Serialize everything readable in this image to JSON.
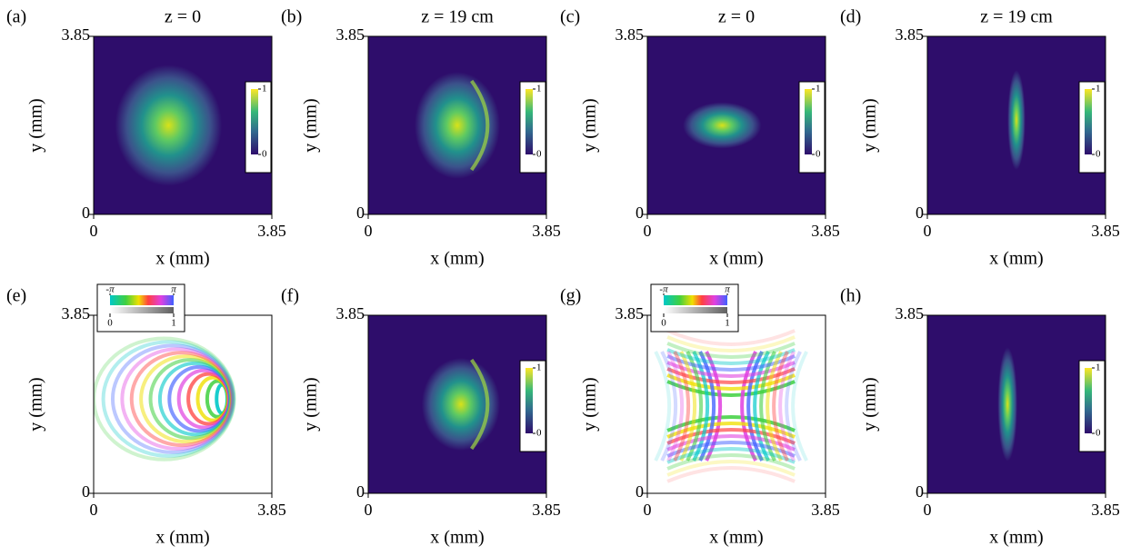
{
  "chart_data": [
    {
      "type": "heatmap",
      "label": "(a)",
      "title": "z = 0",
      "xlabel": "x (mm)",
      "ylabel": "y (mm)",
      "xlim": [
        0,
        3.85
      ],
      "ylim": [
        0,
        3.85
      ],
      "xticks": [
        0,
        3.85
      ],
      "yticks": [
        0,
        3.85
      ],
      "colorbar": {
        "type": "intensity",
        "clim": [
          0,
          1
        ],
        "ticks": [
          0,
          1
        ]
      }
    },
    {
      "type": "heatmap",
      "label": "(b)",
      "title": "z = 19 cm",
      "xlabel": "x (mm)",
      "ylabel": "y (mm)",
      "xlim": [
        0,
        3.85
      ],
      "ylim": [
        0,
        3.85
      ],
      "xticks": [
        0,
        3.85
      ],
      "yticks": [
        0,
        3.85
      ],
      "colorbar": {
        "type": "intensity",
        "clim": [
          0,
          1
        ],
        "ticks": [
          0,
          1
        ]
      }
    },
    {
      "type": "heatmap",
      "label": "(c)",
      "title": "z = 0",
      "xlabel": "x (mm)",
      "ylabel": "y (mm)",
      "xlim": [
        0,
        3.85
      ],
      "ylim": [
        0,
        3.85
      ],
      "xticks": [
        0,
        3.85
      ],
      "yticks": [
        0,
        3.85
      ],
      "colorbar": {
        "type": "intensity",
        "clim": [
          0,
          1
        ],
        "ticks": [
          0,
          1
        ]
      }
    },
    {
      "type": "heatmap",
      "label": "(d)",
      "title": "z = 19 cm",
      "xlabel": "x (mm)",
      "ylabel": "y (mm)",
      "xlim": [
        0,
        3.85
      ],
      "ylim": [
        0,
        3.85
      ],
      "xticks": [
        0,
        3.85
      ],
      "yticks": [
        0,
        3.85
      ],
      "colorbar": {
        "type": "intensity",
        "clim": [
          0,
          1
        ],
        "ticks": [
          0,
          1
        ]
      }
    },
    {
      "type": "heatmap",
      "label": "(e)",
      "xlabel": "x (mm)",
      "ylabel": "y (mm)",
      "xlim": [
        0,
        3.85
      ],
      "ylim": [
        0,
        3.85
      ],
      "xticks": [
        0,
        3.85
      ],
      "yticks": [
        0,
        3.85
      ],
      "colorbar": {
        "type": "phase",
        "hue_lim": [
          -3.14159,
          3.14159
        ],
        "hue_ticks": [
          {
            "value": -3.14159,
            "label": "-π"
          },
          {
            "value": 3.14159,
            "label": "π"
          }
        ],
        "clim": [
          0,
          1
        ],
        "ticks": [
          0,
          1
        ]
      }
    },
    {
      "type": "heatmap",
      "label": "(f)",
      "xlabel": "x (mm)",
      "ylabel": "y (mm)",
      "xlim": [
        0,
        3.85
      ],
      "ylim": [
        0,
        3.85
      ],
      "xticks": [
        0,
        3.85
      ],
      "yticks": [
        0,
        3.85
      ],
      "colorbar": {
        "type": "intensity",
        "clim": [
          0,
          1
        ],
        "ticks": [
          0,
          1
        ]
      }
    },
    {
      "type": "heatmap",
      "label": "(g)",
      "xlabel": "x (mm)",
      "ylabel": "y (mm)",
      "xlim": [
        0,
        3.85
      ],
      "ylim": [
        0,
        3.85
      ],
      "xticks": [
        0,
        3.85
      ],
      "yticks": [
        0,
        3.85
      ],
      "colorbar": {
        "type": "phase",
        "hue_lim": [
          -3.14159,
          3.14159
        ],
        "hue_ticks": [
          {
            "value": -3.14159,
            "label": "-π"
          },
          {
            "value": 3.14159,
            "label": "π"
          }
        ],
        "clim": [
          0,
          1
        ],
        "ticks": [
          0,
          1
        ]
      }
    },
    {
      "type": "heatmap",
      "label": "(h)",
      "xlabel": "x (mm)",
      "ylabel": "y (mm)",
      "xlim": [
        0,
        3.85
      ],
      "ylim": [
        0,
        3.85
      ],
      "xticks": [
        0,
        3.85
      ],
      "yticks": [
        0,
        3.85
      ],
      "colorbar": {
        "type": "intensity",
        "clim": [
          0,
          1
        ],
        "ticks": [
          0,
          1
        ]
      }
    }
  ]
}
